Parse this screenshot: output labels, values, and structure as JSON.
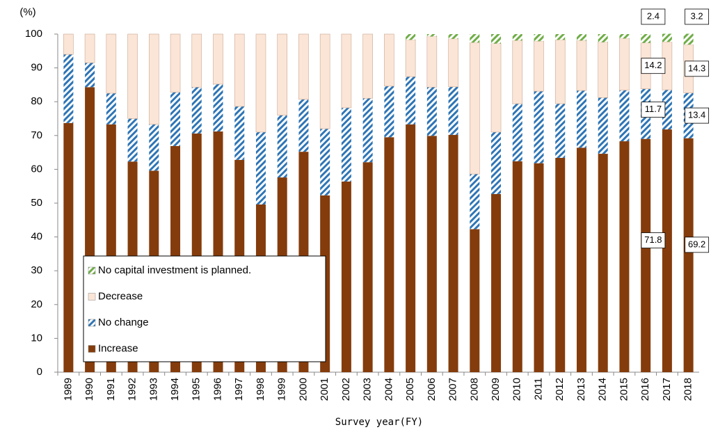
{
  "chart_data": {
    "type": "stacked_bar",
    "y_label": "(%)",
    "x_label": "Survey year(FY)",
    "categories": [
      "1989",
      "1990",
      "1991",
      "1992",
      "1993",
      "1994",
      "1995",
      "1996",
      "1997",
      "1998",
      "1999",
      "2000",
      "2001",
      "2002",
      "2003",
      "2004",
      "2005",
      "2006",
      "2007",
      "2008",
      "2009",
      "2010",
      "2011",
      "2012",
      "2013",
      "2014",
      "2015",
      "2016",
      "2017",
      "2018"
    ],
    "series": [
      {
        "name": "Increase",
        "color": "#843c0c",
        "pattern": "solid",
        "values": [
          73.7,
          84.3,
          73.3,
          62.3,
          59.6,
          66.9,
          70.6,
          71.2,
          62.8,
          49.6,
          57.6,
          65.2,
          52.3,
          56.4,
          62.1,
          69.5,
          73.3,
          69.9,
          70.2,
          42.3,
          52.7,
          62.4,
          61.8,
          63.4,
          66.4,
          64.6,
          68.3,
          69.0,
          71.8,
          69.2
        ],
        "value_labels": [
          null,
          null,
          null,
          null,
          null,
          null,
          null,
          null,
          null,
          null,
          null,
          null,
          null,
          null,
          null,
          null,
          null,
          null,
          null,
          null,
          null,
          null,
          null,
          null,
          null,
          null,
          null,
          null,
          "71.8",
          "69.2"
        ]
      },
      {
        "name": "No change",
        "color": "#2e75b6",
        "pattern": "hatch",
        "values": [
          20.3,
          7.2,
          9.2,
          12.7,
          13.7,
          15.9,
          13.7,
          14.0,
          15.8,
          21.4,
          18.4,
          15.5,
          19.7,
          21.8,
          18.9,
          15.1,
          14.1,
          14.4,
          14.2,
          16.3,
          18.3,
          17.0,
          21.3,
          16.0,
          16.9,
          16.6,
          15.1,
          14.8,
          11.7,
          13.4
        ],
        "value_labels": [
          null,
          null,
          null,
          null,
          null,
          null,
          null,
          null,
          null,
          null,
          null,
          null,
          null,
          null,
          null,
          null,
          null,
          null,
          null,
          null,
          null,
          null,
          null,
          null,
          null,
          null,
          null,
          null,
          "11.7",
          "13.4"
        ]
      },
      {
        "name": "Decrease",
        "color": "#fbe5d6",
        "pattern": "solid",
        "values": [
          6.0,
          8.5,
          17.5,
          25.0,
          26.7,
          17.2,
          15.7,
          14.8,
          21.4,
          29.0,
          24.0,
          19.3,
          28.0,
          21.8,
          19.0,
          15.4,
          10.9,
          15.0,
          14.2,
          38.9,
          26.2,
          18.7,
          14.8,
          18.9,
          14.8,
          16.4,
          15.3,
          13.6,
          14.2,
          14.3
        ],
        "value_labels": [
          null,
          null,
          null,
          null,
          null,
          null,
          null,
          null,
          null,
          null,
          null,
          null,
          null,
          null,
          null,
          null,
          null,
          null,
          null,
          null,
          null,
          null,
          null,
          null,
          null,
          null,
          null,
          null,
          "14.2",
          "14.3"
        ]
      },
      {
        "name": "No capital investment is planned.",
        "color": "#70ad47",
        "pattern": "hatch",
        "values": [
          0,
          0,
          0,
          0,
          0,
          0,
          0,
          0,
          0,
          0,
          0,
          0,
          0,
          0,
          0,
          0,
          1.7,
          0.7,
          1.4,
          2.5,
          2.8,
          1.9,
          2.1,
          1.7,
          1.9,
          2.4,
          1.3,
          2.6,
          2.4,
          3.2
        ],
        "value_labels": [
          null,
          null,
          null,
          null,
          null,
          null,
          null,
          null,
          null,
          null,
          null,
          null,
          null,
          null,
          null,
          null,
          null,
          null,
          null,
          null,
          null,
          null,
          null,
          null,
          null,
          null,
          null,
          null,
          "2.4",
          "3.2"
        ]
      }
    ],
    "ylim": [
      0,
      100
    ],
    "yticks": [
      0,
      10,
      20,
      30,
      40,
      50,
      60,
      70,
      80,
      90,
      100
    ],
    "grid": false,
    "legend": "lower left"
  }
}
